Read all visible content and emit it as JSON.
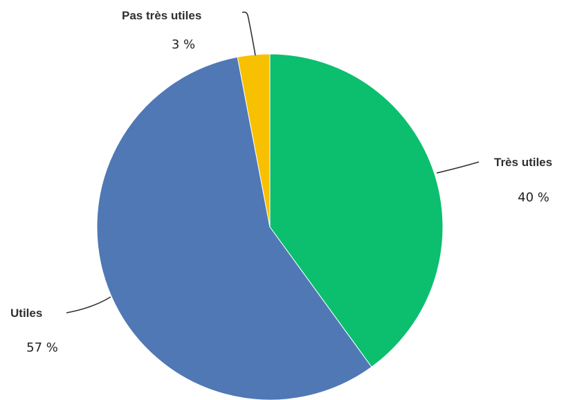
{
  "chart_data": {
    "type": "pie",
    "title": "",
    "slices": [
      {
        "label": "Très utiles",
        "value": 40,
        "value_label": "40 %",
        "color": "#0bbf6e"
      },
      {
        "label": "Utiles",
        "value": 57,
        "value_label": "57 %",
        "color": "#4f78b5"
      },
      {
        "label": "Pas très utiles",
        "value": 3,
        "value_label": "3 %",
        "color": "#f7c001"
      }
    ],
    "start": "top",
    "direction": "clockwise"
  }
}
